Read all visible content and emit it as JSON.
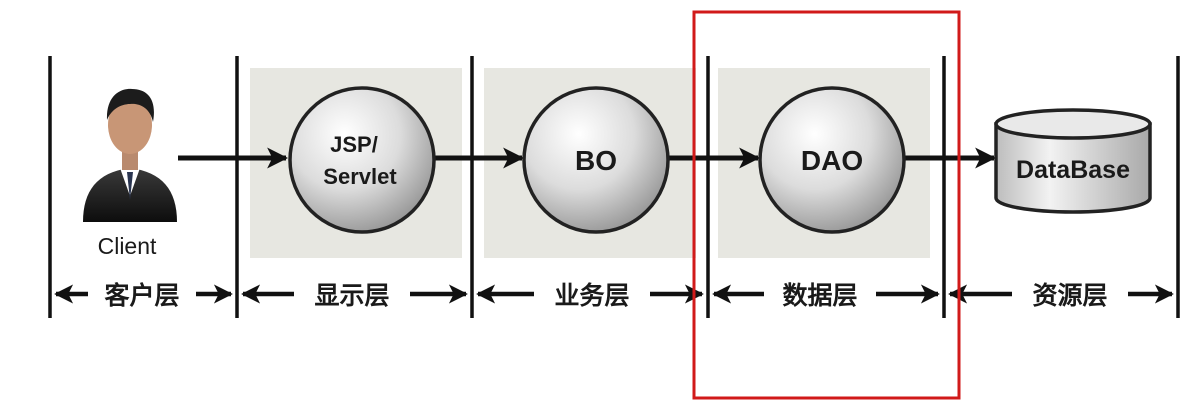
{
  "diagram": {
    "nodes": {
      "client": "Client",
      "jsp_line1": "JSP/",
      "jsp_line2": "Servlet",
      "bo": "BO",
      "dao": "DAO",
      "database": "DataBase"
    },
    "layers": {
      "client": "客户层",
      "display": "显示层",
      "business": "业务层",
      "data": "数据层",
      "resource": "资源层"
    },
    "colors": {
      "arrow": "#111111",
      "panel": "#e7e7e1",
      "node_fill": "#d6d6d6",
      "highlight": "#d11a1a"
    },
    "highlighted_layer": "data"
  }
}
